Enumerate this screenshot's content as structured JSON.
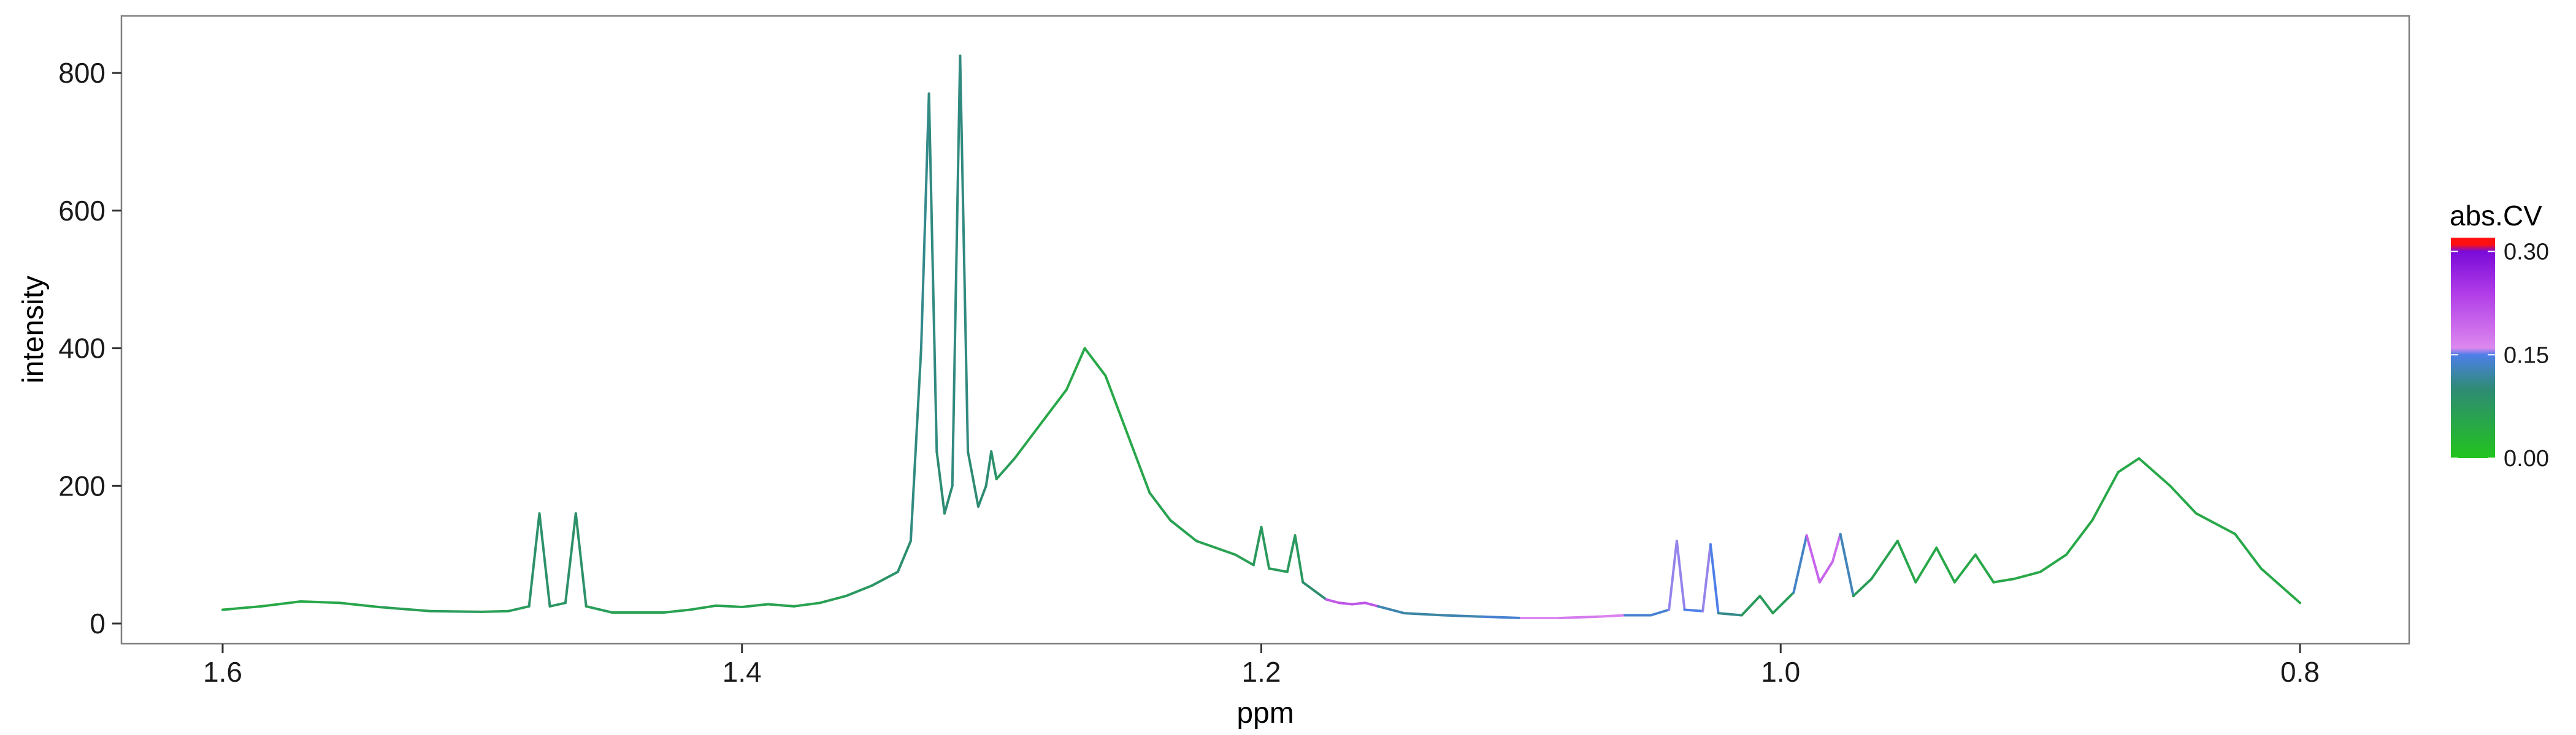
{
  "chart_data": {
    "type": "line",
    "xlabel": "ppm",
    "ylabel": "intensity",
    "x_reversed": true,
    "xlim": [
      1.6,
      0.8
    ],
    "ylim": [
      0,
      850
    ],
    "x_ticks": [
      1.6,
      1.4,
      1.2,
      1.0,
      0.8
    ],
    "x_tick_labels": [
      "1.6",
      "1.4",
      "1.2",
      "1.0",
      "0.8"
    ],
    "y_ticks": [
      0,
      200,
      400,
      600,
      800
    ],
    "y_tick_labels": [
      "0",
      "200",
      "400",
      "600",
      "800"
    ],
    "grid": false,
    "legend": {
      "title": "abs.CV",
      "position": "right",
      "type": "colorbar",
      "range": [
        0,
        0.32
      ],
      "ticks": [
        0,
        0.15,
        0.3
      ],
      "tick_labels": [
        "0.00",
        "0.15",
        "0.30"
      ],
      "gradient": [
        {
          "value": 0.0,
          "color": "#22c41c"
        },
        {
          "value": 0.1,
          "color": "#2e8b74"
        },
        {
          "value": 0.15,
          "color": "#4d7fe8"
        },
        {
          "value": 0.16,
          "color": "#dd88ee"
        },
        {
          "value": 0.24,
          "color": "#b03ce8"
        },
        {
          "value": 0.3,
          "color": "#7a0ad8"
        },
        {
          "value": 0.31,
          "color": "#ff1010"
        }
      ]
    },
    "series": [
      {
        "points": [
          [
            1.6,
            20,
            0.05
          ],
          [
            1.585,
            25,
            0.05
          ],
          [
            1.57,
            32,
            0.05
          ],
          [
            1.555,
            30,
            0.05
          ],
          [
            1.54,
            24,
            0.06
          ],
          [
            1.52,
            18,
            0.07
          ],
          [
            1.5,
            17,
            0.07
          ],
          [
            1.49,
            18,
            0.06
          ],
          [
            1.482,
            25,
            0.08
          ],
          [
            1.478,
            160,
            0.1
          ],
          [
            1.474,
            25,
            0.08
          ],
          [
            1.468,
            30,
            0.08
          ],
          [
            1.464,
            160,
            0.1
          ],
          [
            1.46,
            25,
            0.08
          ],
          [
            1.45,
            16,
            0.06
          ],
          [
            1.43,
            16,
            0.06
          ],
          [
            1.42,
            20,
            0.06
          ],
          [
            1.41,
            26,
            0.06
          ],
          [
            1.4,
            24,
            0.06
          ],
          [
            1.39,
            28,
            0.06
          ],
          [
            1.38,
            25,
            0.06
          ],
          [
            1.37,
            30,
            0.06
          ],
          [
            1.36,
            40,
            0.07
          ],
          [
            1.35,
            55,
            0.08
          ],
          [
            1.34,
            75,
            0.09
          ],
          [
            1.335,
            120,
            0.1
          ],
          [
            1.331,
            400,
            0.11
          ],
          [
            1.328,
            770,
            0.11
          ],
          [
            1.325,
            250,
            0.1
          ],
          [
            1.322,
            160,
            0.1
          ],
          [
            1.319,
            200,
            0.1
          ],
          [
            1.316,
            825,
            0.11
          ],
          [
            1.313,
            250,
            0.1
          ],
          [
            1.309,
            170,
            0.1
          ],
          [
            1.306,
            200,
            0.1
          ],
          [
            1.304,
            250,
            0.1
          ],
          [
            1.302,
            210,
            0.08
          ],
          [
            1.295,
            240,
            0.06
          ],
          [
            1.285,
            290,
            0.05
          ],
          [
            1.275,
            340,
            0.05
          ],
          [
            1.268,
            400,
            0.05
          ],
          [
            1.26,
            360,
            0.05
          ],
          [
            1.25,
            260,
            0.05
          ],
          [
            1.243,
            190,
            0.06
          ],
          [
            1.235,
            150,
            0.06
          ],
          [
            1.225,
            120,
            0.06
          ],
          [
            1.21,
            100,
            0.06
          ],
          [
            1.203,
            85,
            0.07
          ],
          [
            1.2,
            140,
            0.08
          ],
          [
            1.197,
            80,
            0.07
          ],
          [
            1.19,
            75,
            0.07
          ],
          [
            1.187,
            128,
            0.08
          ],
          [
            1.184,
            60,
            0.07
          ],
          [
            1.175,
            35,
            0.12
          ],
          [
            1.17,
            30,
            0.3
          ],
          [
            1.165,
            28,
            0.13
          ],
          [
            1.16,
            30,
            0.3
          ],
          [
            1.155,
            25,
            0.13
          ],
          [
            1.145,
            15,
            0.12
          ],
          [
            1.13,
            12,
            0.12
          ],
          [
            1.115,
            10,
            0.13
          ],
          [
            1.1,
            8,
            0.15
          ],
          [
            1.085,
            8,
            0.17
          ],
          [
            1.07,
            10,
            0.18
          ],
          [
            1.06,
            12,
            0.15
          ],
          [
            1.05,
            12,
            0.13
          ],
          [
            1.043,
            20,
            0.15
          ],
          [
            1.04,
            120,
            0.16
          ],
          [
            1.037,
            20,
            0.15
          ],
          [
            1.03,
            18,
            0.15
          ],
          [
            1.027,
            115,
            0.16
          ],
          [
            1.024,
            15,
            0.14
          ],
          [
            1.015,
            12,
            0.08
          ],
          [
            1.008,
            40,
            0.07
          ],
          [
            1.003,
            15,
            0.07
          ],
          [
            0.995,
            45,
            0.07
          ],
          [
            0.99,
            128,
            0.2
          ],
          [
            0.985,
            60,
            0.2
          ],
          [
            0.98,
            90,
            0.2
          ],
          [
            0.977,
            130,
            0.18
          ],
          [
            0.972,
            40,
            0.08
          ],
          [
            0.965,
            65,
            0.06
          ],
          [
            0.955,
            120,
            0.06
          ],
          [
            0.948,
            60,
            0.05
          ],
          [
            0.94,
            110,
            0.05
          ],
          [
            0.933,
            60,
            0.05
          ],
          [
            0.925,
            100,
            0.05
          ],
          [
            0.918,
            60,
            0.05
          ],
          [
            0.91,
            65,
            0.05
          ],
          [
            0.9,
            75,
            0.05
          ],
          [
            0.89,
            100,
            0.05
          ],
          [
            0.88,
            150,
            0.05
          ],
          [
            0.87,
            220,
            0.05
          ],
          [
            0.862,
            240,
            0.05
          ],
          [
            0.85,
            200,
            0.05
          ],
          [
            0.84,
            160,
            0.05
          ],
          [
            0.825,
            130,
            0.05
          ],
          [
            0.815,
            80,
            0.05
          ],
          [
            0.8,
            30,
            0.05
          ]
        ]
      }
    ]
  }
}
